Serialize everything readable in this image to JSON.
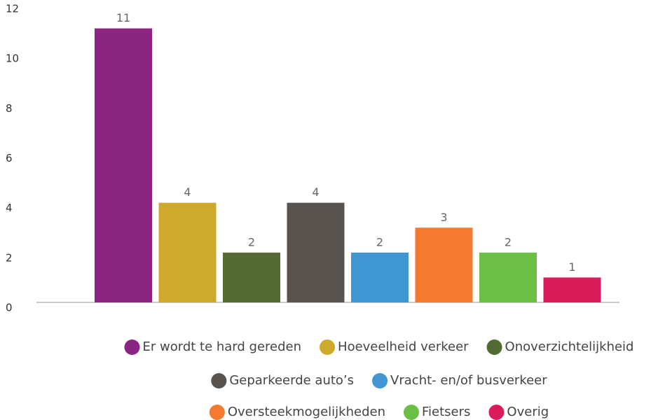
{
  "chart_data": {
    "type": "bar",
    "categories": [
      "Er wordt te hard gereden",
      "Hoeveelheid verkeer",
      "Onoverzichtelijkheid",
      "Geparkeerde auto’s",
      "Vracht- en/of busverkeer",
      "Oversteekmogelijkheden",
      "Fietsers",
      "Overig"
    ],
    "values": [
      11,
      4,
      2,
      4,
      2,
      3,
      2,
      1
    ],
    "colors": [
      "#8b2581",
      "#cfa92b",
      "#536b32",
      "#58534e",
      "#3f96d3",
      "#f47a2f",
      "#6cbf45",
      "#db1c5a"
    ],
    "ylim": [
      0,
      12
    ],
    "yticks": [
      0,
      2,
      4,
      6,
      8,
      10,
      12
    ],
    "grid": false,
    "legend": "bottom"
  }
}
